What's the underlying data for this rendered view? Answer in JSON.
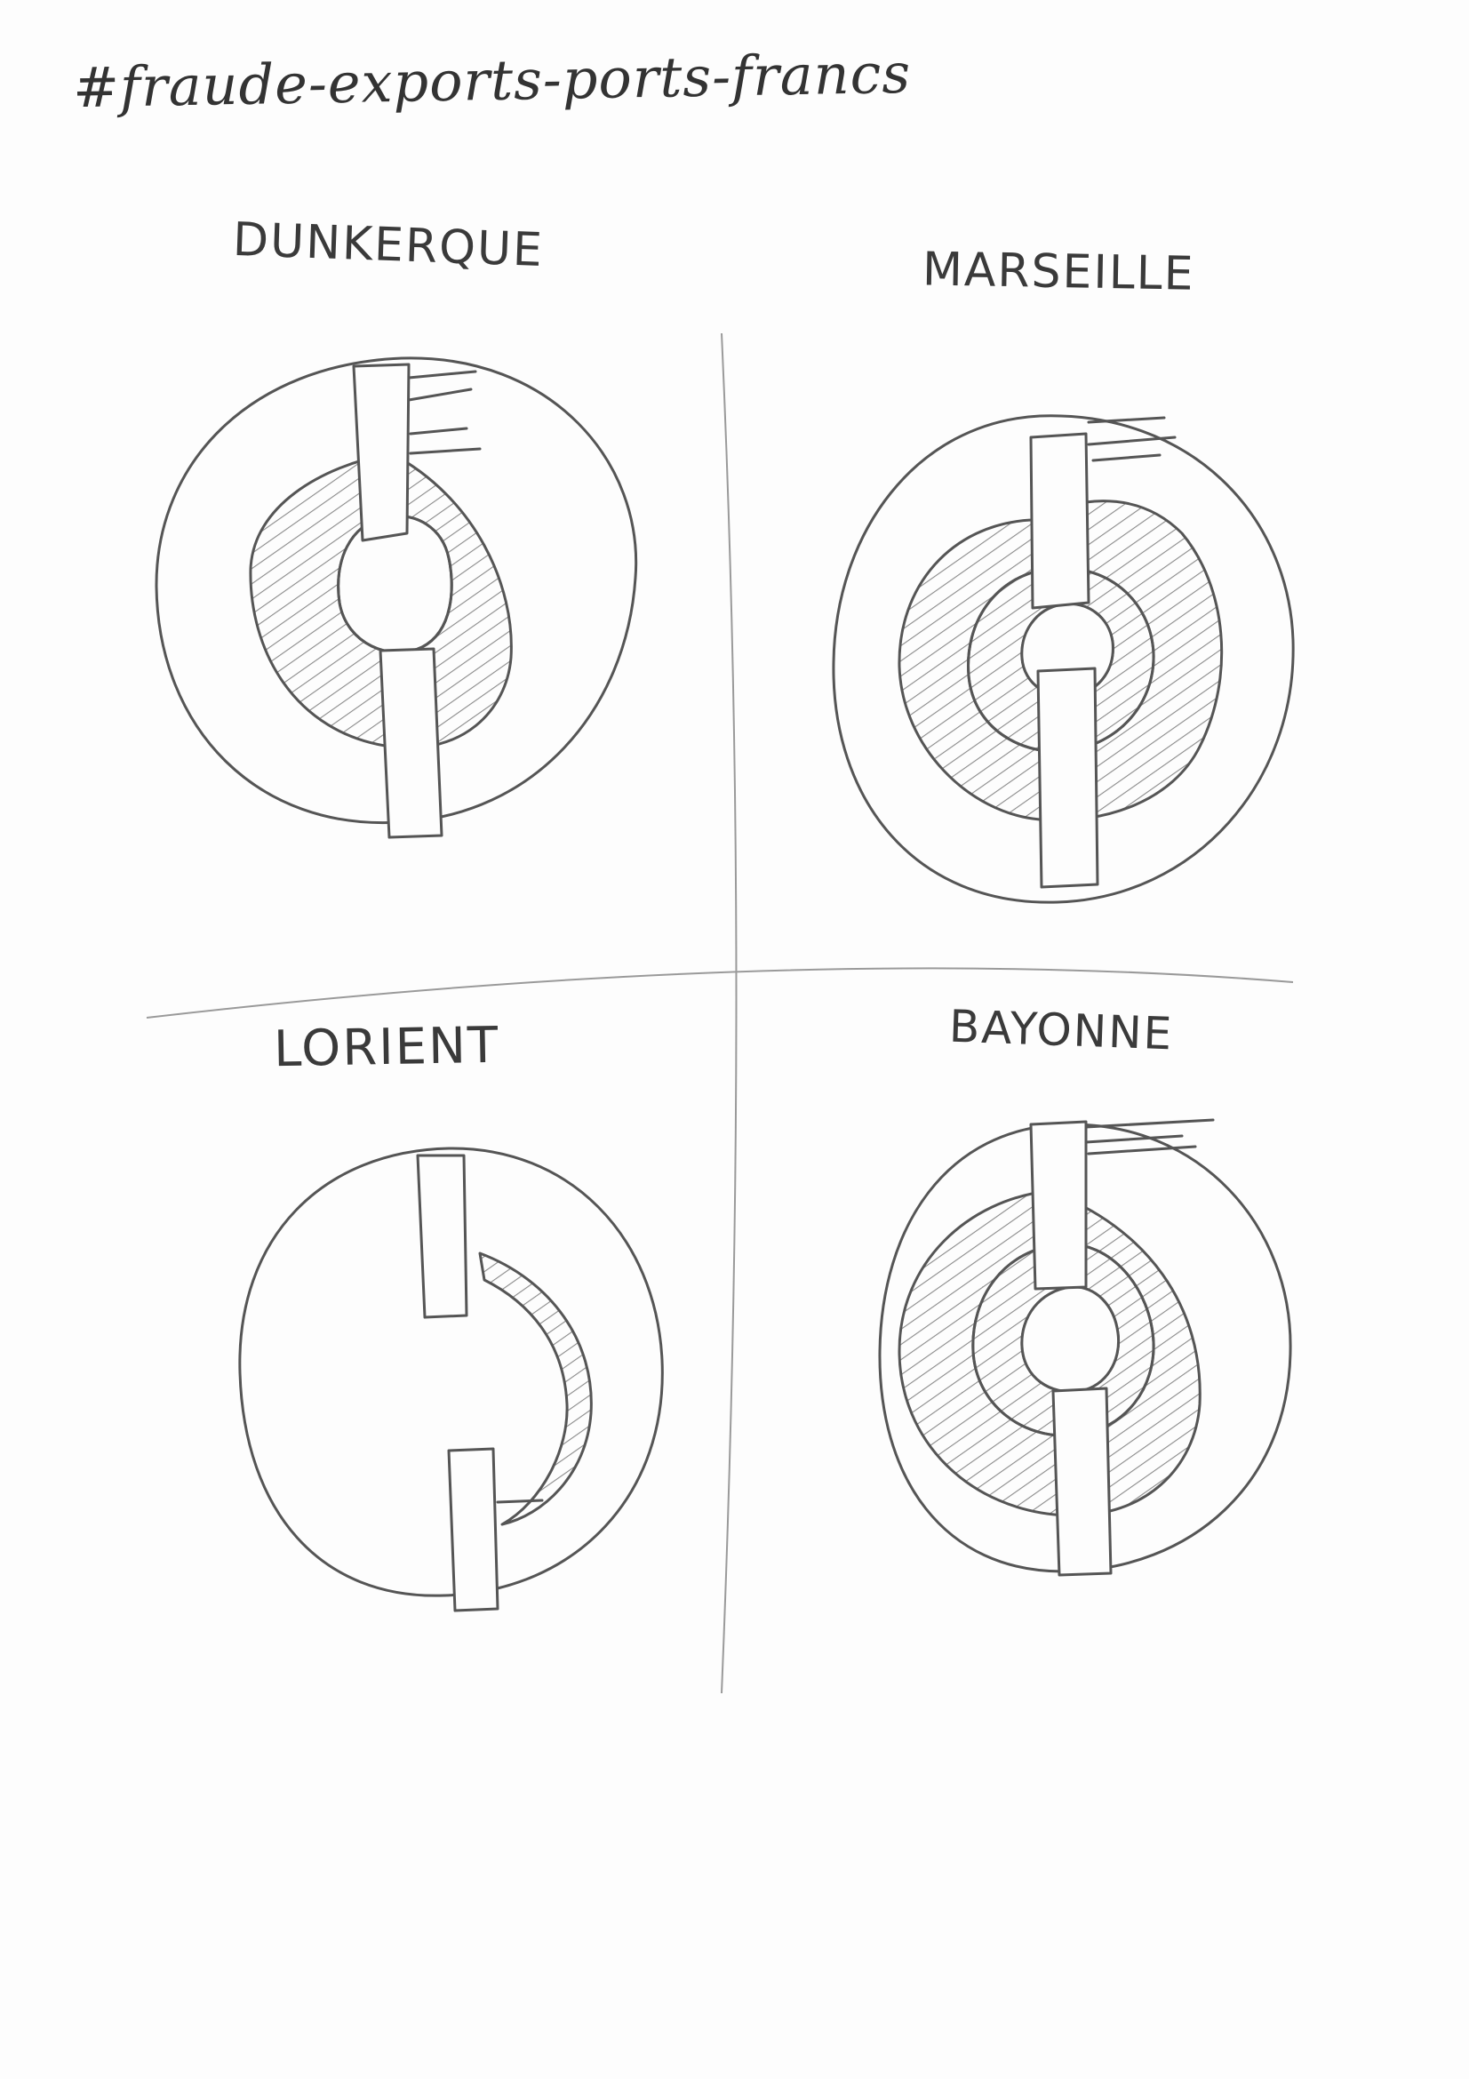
{
  "sheet": {
    "title": "#fraude-exports-ports-francs"
  },
  "panels": [
    {
      "id": "dunkerque",
      "label": "DUNKERQUE"
    },
    {
      "id": "marseille",
      "label": "MARSEILLE"
    },
    {
      "id": "lorient",
      "label": "LORIENT"
    },
    {
      "id": "bayonne",
      "label": "BAYONNE"
    }
  ],
  "style": {
    "ink": "#555555",
    "hatch": "#8a8a8a",
    "paper": "#fdfdfd"
  }
}
